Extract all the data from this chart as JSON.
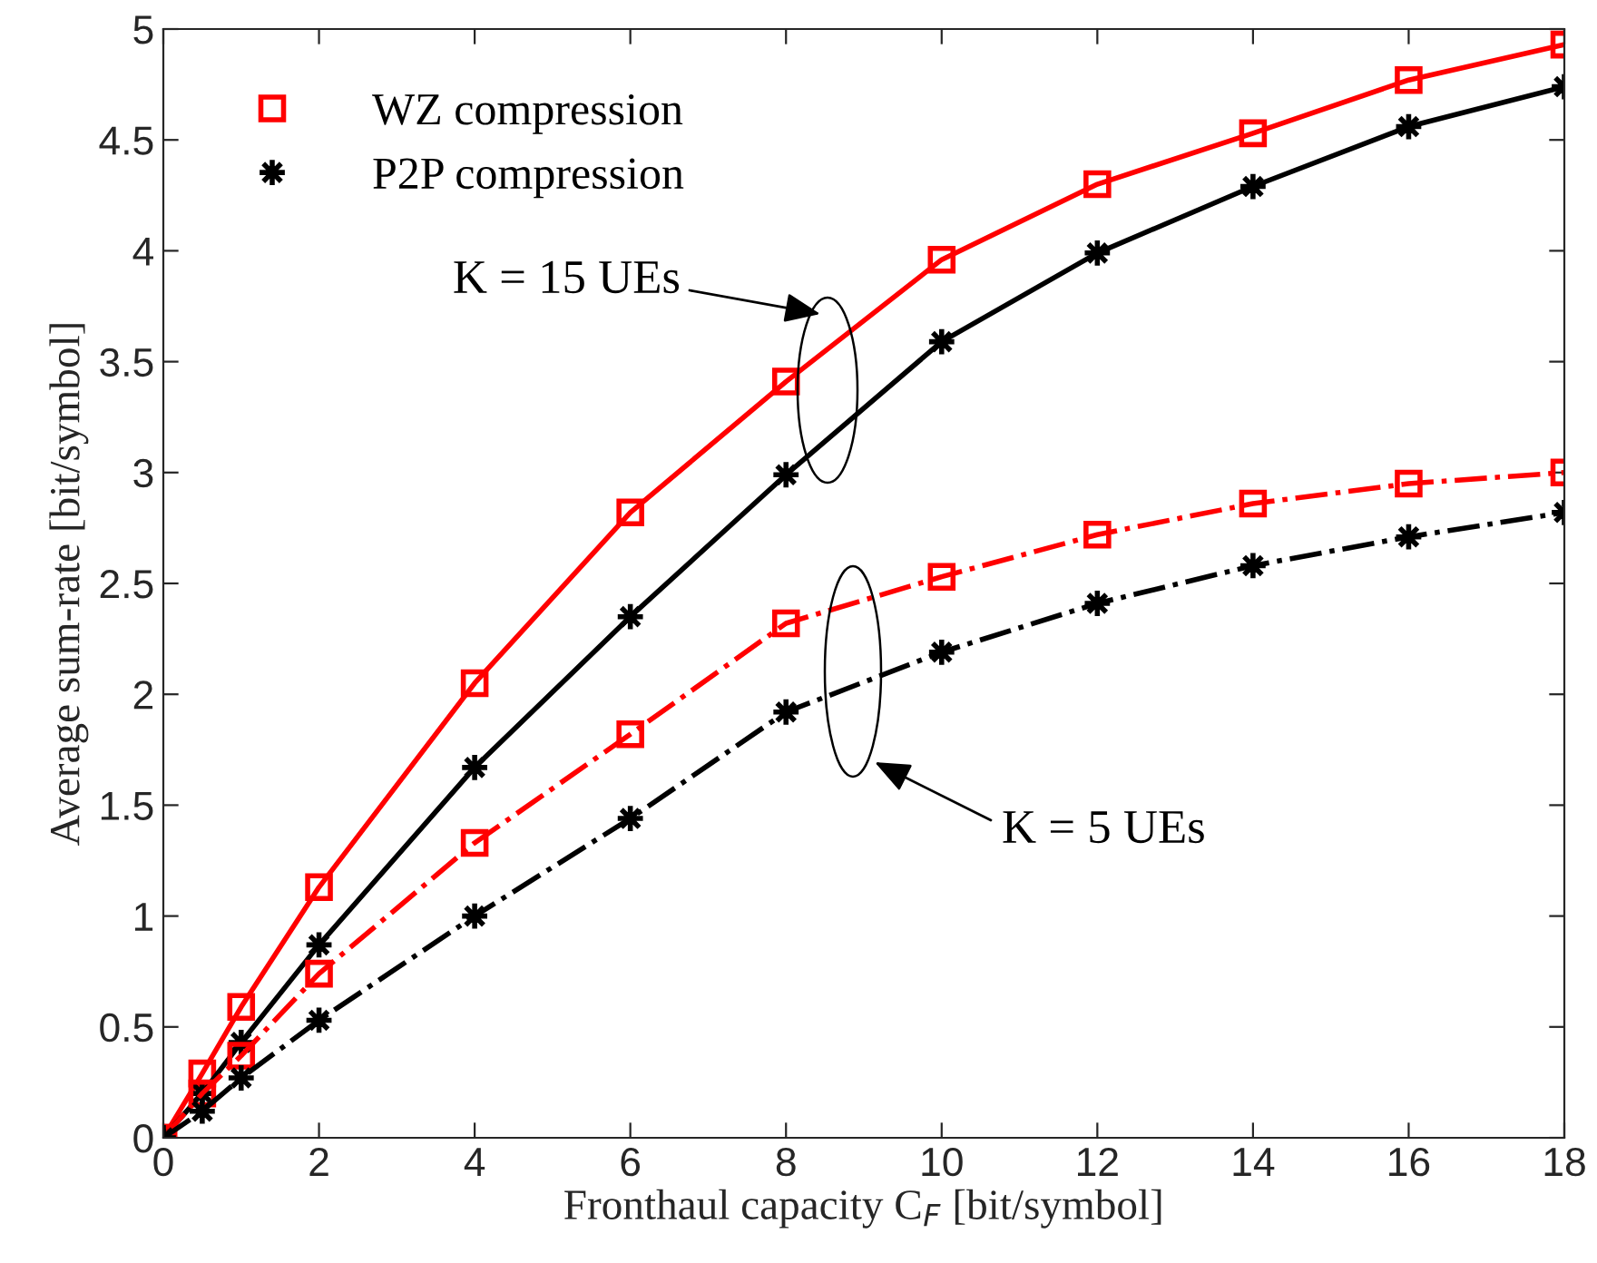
{
  "chart_data": {
    "type": "line",
    "xlabel": "Fronthaul capacity C$_{F}$ [bit/symbol]",
    "ylabel": "Average sum-rate [bit/symbol]",
    "x": [
      0,
      0.5,
      1,
      2,
      4,
      6,
      8,
      10,
      12,
      14,
      16,
      18
    ],
    "series": [
      {
        "name": "WZ compression",
        "color": "#ff0000",
        "marker": "square",
        "line_style": "solid",
        "values": [
          0,
          0.29,
          0.59,
          1.13,
          2.05,
          2.82,
          3.41,
          3.96,
          4.3,
          4.53,
          4.77,
          4.93
        ]
      },
      {
        "name": "P2P compression",
        "color": "#000000",
        "marker": "star",
        "line_style": "solid",
        "values": [
          0,
          0.2,
          0.43,
          0.87,
          1.67,
          2.35,
          2.99,
          3.59,
          3.99,
          4.29,
          4.56,
          4.74
        ]
      },
      {
        "color": "#ff0000",
        "marker": "square",
        "line_style": "dashdot",
        "values": [
          0,
          0.2,
          0.37,
          0.74,
          1.33,
          1.82,
          2.32,
          2.53,
          2.72,
          2.86,
          2.95,
          3.0
        ]
      },
      {
        "color": "#000000",
        "marker": "star",
        "line_style": "dashdot",
        "values": [
          0,
          0.12,
          0.27,
          0.53,
          1.0,
          1.44,
          1.92,
          2.19,
          2.41,
          2.58,
          2.71,
          2.82
        ]
      }
    ],
    "xlim": [
      0,
      18
    ],
    "xticks": [
      0,
      2,
      4,
      6,
      8,
      10,
      12,
      14,
      16,
      18
    ],
    "ylim": [
      0,
      5
    ],
    "yticks": [
      0,
      0.5,
      1,
      1.5,
      2,
      2.5,
      3,
      3.5,
      4,
      4.5,
      5
    ],
    "grid": false,
    "legend": "top left",
    "annotations": [
      "K = 15 UEs",
      "K = 5 UEs"
    ]
  }
}
